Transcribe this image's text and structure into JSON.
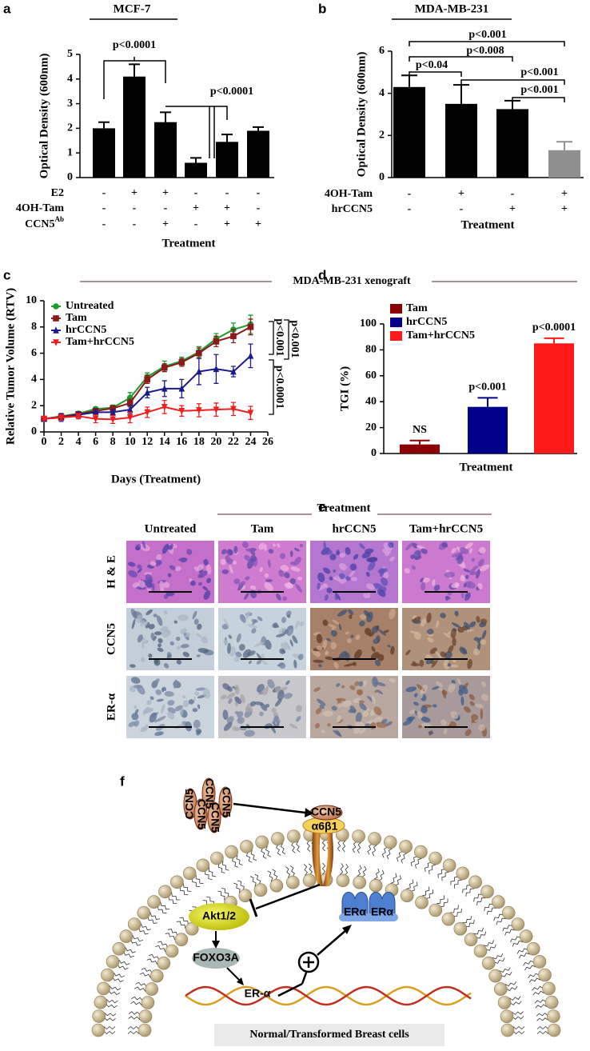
{
  "panel_labels": [
    "a",
    "b",
    "c",
    "d",
    "e",
    "f"
  ],
  "chart_data": [
    {
      "type": "bar",
      "title": "MCF-7",
      "y_label": "Optical Density (600nm)",
      "x_label": "Treatment",
      "values": [
        2.0,
        4.1,
        2.25,
        0.6,
        1.45,
        1.9
      ],
      "errors": [
        0.25,
        0.5,
        0.4,
        0.2,
        0.3,
        0.15
      ],
      "color": "#000000",
      "ylim": [
        0,
        5
      ],
      "yticks": [
        0,
        1,
        2,
        3,
        4,
        5
      ],
      "treatments": [
        {
          "name": "E2",
          "signs": [
            "-",
            "+",
            "+",
            "-",
            "-",
            "-"
          ]
        },
        {
          "name": "4OH-Tam",
          "signs": [
            "-",
            "-",
            "-",
            "+",
            "+",
            "-"
          ]
        },
        {
          "name": "CCN5",
          "superscript": "Ab",
          "signs": [
            "-",
            "-",
            "+",
            "-",
            "+",
            "+"
          ]
        }
      ],
      "annotations": [
        "p<0.0001",
        "p<0.0001"
      ]
    },
    {
      "type": "bar",
      "title": "MDA-MB-231",
      "y_label": "Optical Density (600nm)",
      "x_label": "Treatment",
      "values": [
        4.3,
        3.5,
        3.25,
        1.3
      ],
      "errors": [
        0.55,
        0.9,
        0.4,
        0.4
      ],
      "colors": [
        "#000000",
        "#000000",
        "#000000",
        "#8f8f8f"
      ],
      "ylim": [
        0,
        6
      ],
      "yticks": [
        0,
        2,
        4,
        6
      ],
      "treatments": [
        {
          "name": "4OH-Tam",
          "signs": [
            "-",
            "+",
            "-",
            "+"
          ]
        },
        {
          "name": "hrCCN5",
          "signs": [
            "-",
            "-",
            "+",
            "+"
          ]
        }
      ],
      "annotations": [
        "p<0.001",
        "p<0.008",
        "p<0.04",
        "p<0.001",
        "p<0.001"
      ]
    },
    {
      "type": "line",
      "title": "MDA-MB-231 xenograft",
      "y_label": "Relative Tumor Volume (RTV)",
      "x_label": "Days (Treatment)",
      "x": [
        0,
        2,
        4,
        6,
        8,
        10,
        12,
        14,
        16,
        18,
        20,
        22,
        24
      ],
      "series": [
        {
          "name": "Untreated",
          "color": "#1e9a2e",
          "marker": "circle",
          "values": [
            1,
            1.2,
            1.4,
            1.75,
            1.85,
            2.6,
            4.2,
            5.0,
            5.4,
            6.1,
            7.1,
            7.8,
            8.2
          ],
          "errors": [
            0.1,
            0.2,
            0.15,
            0.15,
            0.2,
            0.4,
            0.3,
            0.4,
            0.3,
            0.4,
            0.4,
            0.5,
            0.7
          ]
        },
        {
          "name": "Tam",
          "color": "#8b1a1a",
          "marker": "square",
          "values": [
            1,
            1.15,
            1.35,
            1.6,
            1.8,
            2.2,
            4.0,
            4.9,
            5.3,
            6.0,
            6.9,
            7.3,
            8.0
          ],
          "errors": [
            0.1,
            0.15,
            0.15,
            0.15,
            0.2,
            0.3,
            0.3,
            0.3,
            0.3,
            0.4,
            0.4,
            0.5,
            0.6
          ]
        },
        {
          "name": "hrCCN5",
          "color": "#1a1a8c",
          "marker": "triangle",
          "values": [
            1,
            1.1,
            1.3,
            1.5,
            1.5,
            1.7,
            3.0,
            3.3,
            3.3,
            4.6,
            4.8,
            4.6,
            5.8
          ],
          "errors": [
            0.1,
            0.3,
            0.2,
            0.2,
            0.2,
            0.3,
            0.4,
            0.6,
            0.7,
            1.0,
            1.1,
            0.4,
            0.9
          ]
        },
        {
          "name": "Tam+hrCCN5",
          "color": "#f01e1e",
          "marker": "triangle-down",
          "values": [
            1,
            1.1,
            1.2,
            1.0,
            0.95,
            1.1,
            1.5,
            1.9,
            1.6,
            1.65,
            1.7,
            1.75,
            1.45
          ],
          "errors": [
            0.1,
            0.2,
            0.2,
            0.3,
            0.3,
            0.4,
            0.4,
            0.5,
            0.4,
            0.5,
            0.5,
            0.5,
            0.5
          ]
        }
      ],
      "xlim": [
        0,
        26
      ],
      "xticks": [
        0,
        2,
        4,
        6,
        8,
        10,
        12,
        14,
        16,
        18,
        20,
        22,
        24,
        26
      ],
      "ylim": [
        0,
        10
      ],
      "yticks": [
        0,
        2,
        4,
        6,
        8,
        10
      ],
      "legend": "top-left",
      "annotations": [
        "p<0.001",
        "p<0.001",
        "p<0.0001"
      ]
    },
    {
      "type": "bar",
      "y_label": "TGI (%)",
      "x_label": "Treatment",
      "categories": [
        "Tam",
        "hrCCN5",
        "Tam+hrCCN5"
      ],
      "values": [
        7,
        36,
        85
      ],
      "errors": [
        3,
        7,
        4
      ],
      "colors": [
        "#8b0000",
        "#00008b",
        "#ff1a1a"
      ],
      "ylim": [
        0,
        100
      ],
      "yticks": [
        0,
        20,
        40,
        60,
        80,
        100
      ],
      "legend": "top-left",
      "annotations": [
        "NS",
        "p<0.001",
        "p<0.0001"
      ]
    }
  ],
  "histology": {
    "header": "Treatment",
    "columns": [
      "Untreated",
      "Tam",
      "hrCCN5",
      "Tam+hrCCN5"
    ],
    "rows": [
      "H & E",
      "CCN5",
      "ER-α"
    ]
  },
  "pathway": {
    "ligands": [
      "CCN5",
      "CCN5",
      "CCN5",
      "CCN5",
      "CCN5"
    ],
    "receptor": "CCN5",
    "integrin": "α6β1",
    "kinase": "Akt1/2",
    "transcription_factor": "FOXO3A",
    "gene": "ER-α",
    "receptors": [
      "ERα",
      "ERα"
    ],
    "caption": "Normal/Transformed Breast cells"
  }
}
